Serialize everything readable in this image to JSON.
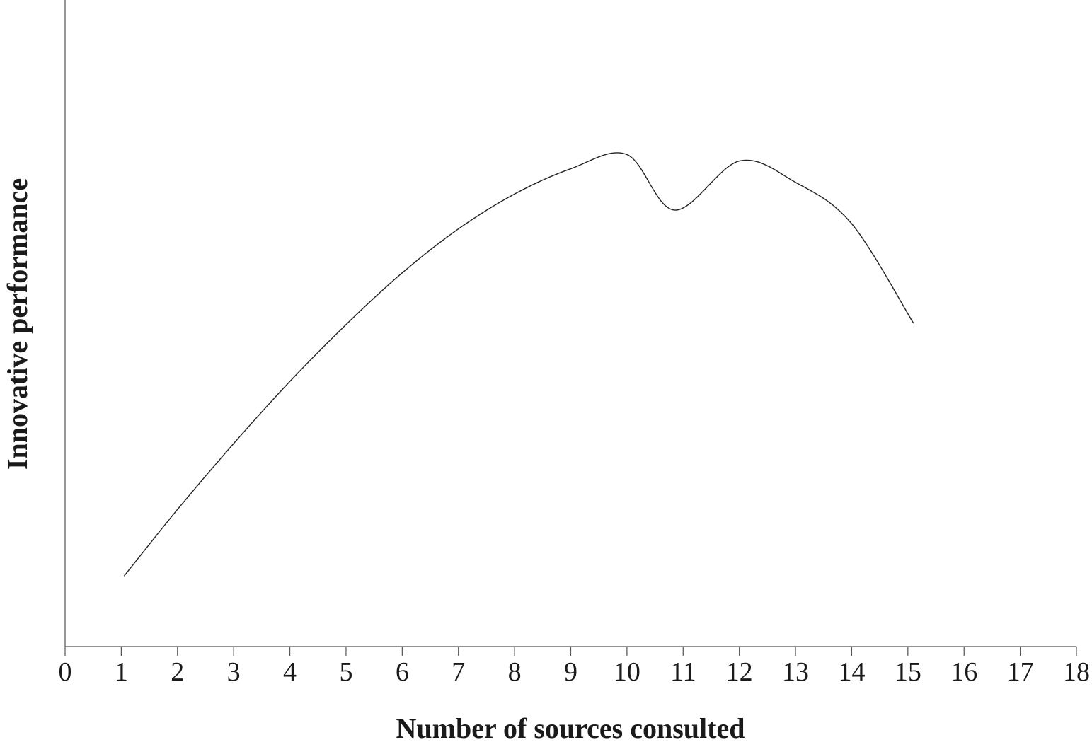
{
  "chart_data": {
    "type": "line",
    "title": "",
    "xlabel": "Number of sources consulted",
    "ylabel": "Innovative performance",
    "xlim": [
      0,
      18
    ],
    "ylim": [
      0,
      100
    ],
    "x_ticks": [
      "0",
      "1",
      "2",
      "3",
      "4",
      "5",
      "6",
      "7",
      "8",
      "9",
      "10",
      "11",
      "12",
      "13",
      "14",
      "15",
      "16",
      "17",
      "18"
    ],
    "y_ticks": [],
    "grid": false,
    "legend": "none",
    "colors": {
      "line": "#222222",
      "axis": "#555555",
      "text": "#1a1a1a"
    },
    "series": [
      {
        "x": [
          1.05,
          2,
          3,
          4,
          5,
          6,
          7,
          8,
          9,
          10,
          10.85,
          12,
          13,
          14,
          15.1
        ],
        "values": [
          10.9,
          21.2,
          31.4,
          41.0,
          49.8,
          57.8,
          64.6,
          70.0,
          73.9,
          76.1,
          67.5,
          75.1,
          71.8,
          65.4,
          50.0
        ]
      }
    ]
  }
}
